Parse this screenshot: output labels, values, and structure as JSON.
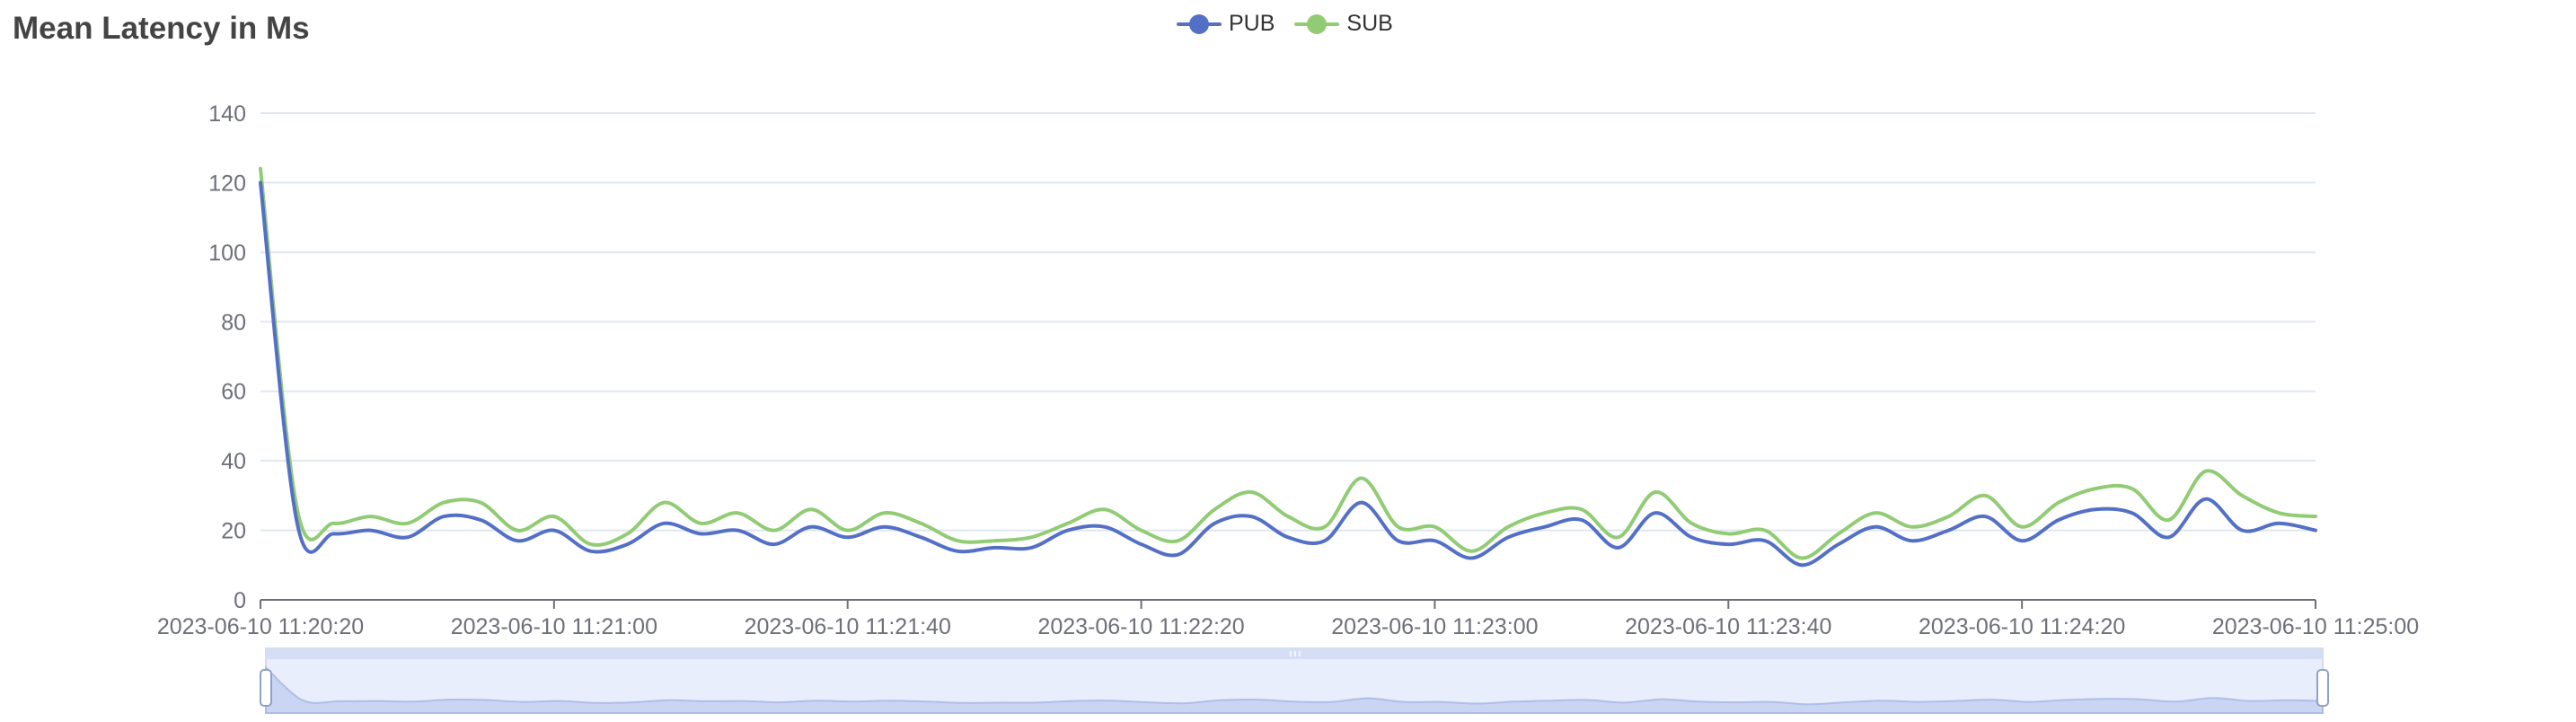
{
  "chart_data": {
    "type": "line",
    "title": "Mean Latency in Ms",
    "xlabel": "",
    "ylabel": "",
    "ylim": [
      0,
      140
    ],
    "yticks": [
      0,
      20,
      40,
      60,
      80,
      100,
      120,
      140
    ],
    "xlim": [
      "2023-06-10 11:20:20",
      "2023-06-10 11:25:00"
    ],
    "xtick_labels": [
      "2023-06-10 11:20:20",
      "2023-06-10 11:21:00",
      "2023-06-10 11:21:40",
      "2023-06-10 11:22:20",
      "2023-06-10 11:23:00",
      "2023-06-10 11:23:40",
      "2023-06-10 11:24:20",
      "2023-06-10 11:25:00"
    ],
    "grid": true,
    "legend_position": "top-center",
    "x": [
      "11:20:20",
      "11:20:25",
      "11:20:30",
      "11:20:35",
      "11:20:40",
      "11:20:45",
      "11:20:50",
      "11:20:55",
      "11:21:00",
      "11:21:05",
      "11:21:10",
      "11:21:15",
      "11:21:20",
      "11:21:25",
      "11:21:30",
      "11:21:35",
      "11:21:40",
      "11:21:45",
      "11:21:50",
      "11:21:55",
      "11:22:00",
      "11:22:05",
      "11:22:10",
      "11:22:15",
      "11:22:20",
      "11:22:25",
      "11:22:30",
      "11:22:35",
      "11:22:40",
      "11:22:45",
      "11:22:50",
      "11:22:55",
      "11:23:00",
      "11:23:05",
      "11:23:10",
      "11:23:15",
      "11:23:20",
      "11:23:25",
      "11:23:30",
      "11:23:35",
      "11:23:40",
      "11:23:45",
      "11:23:50",
      "11:23:55",
      "11:24:00",
      "11:24:05",
      "11:24:10",
      "11:24:15",
      "11:24:20",
      "11:24:25",
      "11:24:30",
      "11:24:35",
      "11:24:40",
      "11:24:45",
      "11:24:50",
      "11:24:55",
      "11:25:00"
    ],
    "series": [
      {
        "name": "PUB",
        "color": "#5470c6",
        "values": [
          120,
          22,
          19,
          20,
          18,
          24,
          23,
          17,
          20,
          14,
          16,
          22,
          19,
          20,
          16,
          21,
          18,
          21,
          18,
          14,
          15,
          15,
          20,
          21,
          16,
          13,
          22,
          24,
          18,
          17,
          28,
          17,
          17,
          12,
          18,
          21,
          23,
          15,
          25,
          18,
          16,
          17,
          10,
          16,
          21,
          17,
          20,
          24,
          17,
          23,
          26,
          25,
          18,
          29,
          20,
          22,
          20
        ]
      },
      {
        "name": "SUB",
        "color": "#91cc75",
        "values": [
          124,
          26,
          22,
          24,
          22,
          28,
          28,
          20,
          24,
          16,
          19,
          28,
          22,
          25,
          20,
          26,
          20,
          25,
          22,
          17,
          17,
          18,
          22,
          26,
          20,
          17,
          26,
          31,
          24,
          21,
          35,
          21,
          21,
          14,
          21,
          25,
          26,
          18,
          31,
          22,
          19,
          20,
          12,
          19,
          25,
          21,
          24,
          30,
          21,
          28,
          32,
          32,
          23,
          37,
          30,
          25,
          24
        ]
      }
    ]
  },
  "legend": {
    "pub_label": "PUB",
    "sub_label": "SUB"
  }
}
